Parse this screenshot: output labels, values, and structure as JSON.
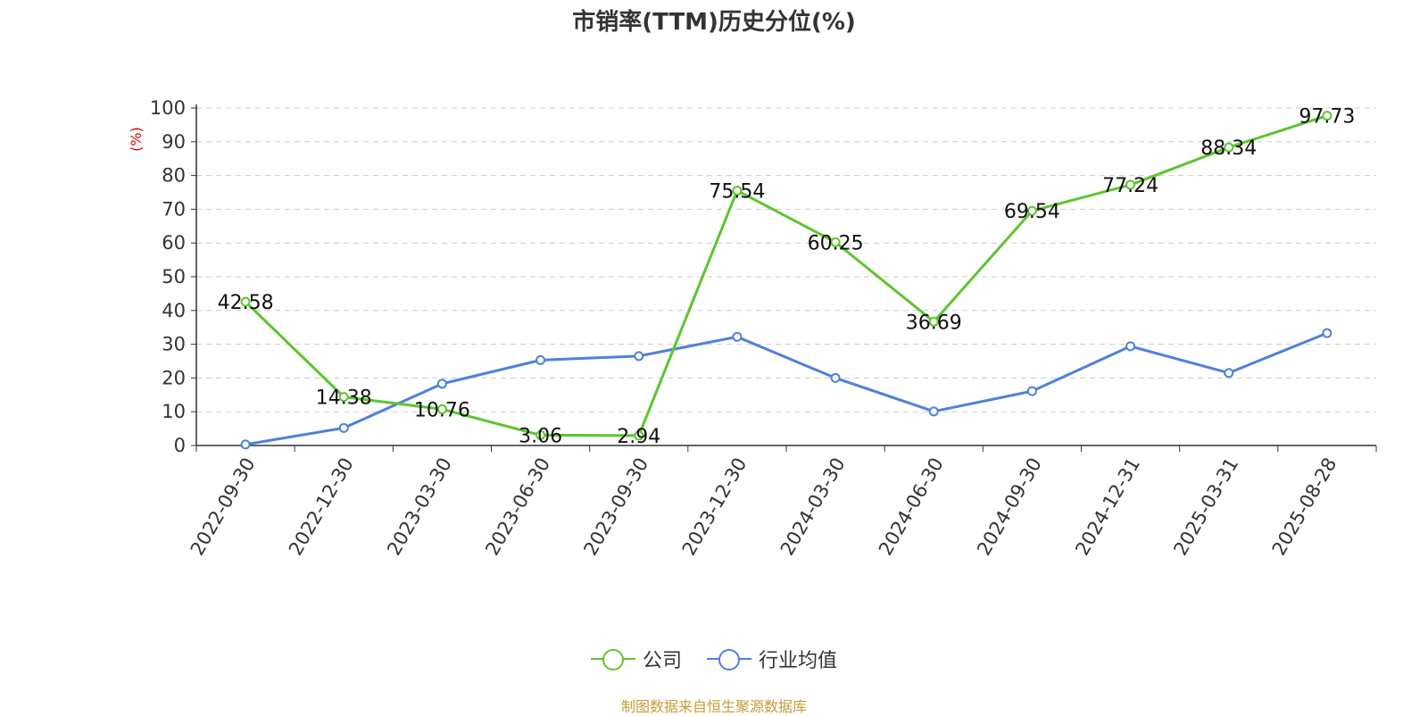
{
  "chart_data": {
    "type": "line",
    "title": "市销率(TTM)历史分位(%)",
    "ylabel": "(%)",
    "xlabel": "",
    "ylim": [
      0,
      100
    ],
    "yticks": [
      "0",
      "10",
      "20",
      "30",
      "40",
      "50",
      "60",
      "70",
      "80",
      "90",
      "100"
    ],
    "grid": true,
    "legend_position": "bottom",
    "categories": [
      "2022-09-30",
      "2022-12-30",
      "2023-03-30",
      "2023-06-30",
      "2023-09-30",
      "2023-12-30",
      "2024-03-30",
      "2024-06-30",
      "2024-09-30",
      "2024-12-31",
      "2025-03-31",
      "2025-08-28"
    ],
    "series": [
      {
        "name": "公司",
        "color": "#5cc52e",
        "values": [
          42.58,
          14.38,
          10.76,
          3.06,
          2.94,
          75.54,
          60.25,
          36.69,
          69.54,
          77.24,
          88.34,
          97.73
        ],
        "labels": [
          "42.58",
          "14.38",
          "10.76",
          "3.06",
          "2.94",
          "75.54",
          "60.25",
          "36.69",
          "69.54",
          "77.24",
          "88.34",
          "97.73"
        ]
      },
      {
        "name": "行业均值",
        "color": "#4e80dc",
        "values": [
          0.3,
          5.2,
          18.3,
          25.3,
          26.5,
          32.2,
          20.0,
          10.1,
          16.1,
          29.4,
          21.5,
          33.3
        ]
      }
    ]
  },
  "source": "制图数据来自恒生聚源数据库"
}
